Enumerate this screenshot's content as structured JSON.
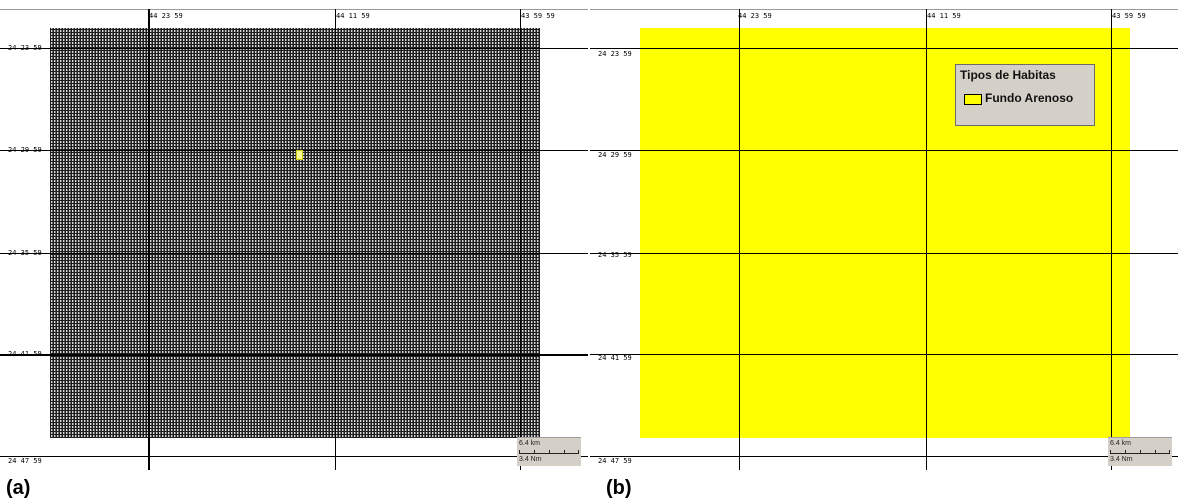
{
  "panels": [
    {
      "id": "a",
      "caption": "(a)",
      "longitude_labels": [
        "44 23 59",
        "44 11 59",
        "43 59 59"
      ],
      "latitude_labels": [
        "24 23 59",
        "24 29 59",
        "24 35 59",
        "24 41 59",
        "24 47 59"
      ],
      "scale_bar": {
        "top_label": "6.4 km",
        "bottom_label": "3.4 Nm"
      },
      "content": "dense grid mesh",
      "marker_visible": true
    },
    {
      "id": "b",
      "caption": "(b)",
      "longitude_labels": [
        "44 23 59",
        "44 11 59",
        "43 59 59"
      ],
      "latitude_labels": [
        "24 23 59",
        "24 29 59",
        "24 35 59",
        "24 41 59",
        "24 47 59"
      ],
      "scale_bar": {
        "top_label": "6.4 km",
        "bottom_label": "3.4 Nm"
      },
      "legend": {
        "title": "Tipos de Habitas",
        "items": [
          {
            "label": "Fundo Arenoso",
            "color": "#ffff00"
          }
        ]
      }
    }
  ],
  "colors": {
    "habitat_fill": "#ffff00",
    "mesh_dark": "#1e1e1e",
    "panel_ui": "#d4d0c8"
  }
}
